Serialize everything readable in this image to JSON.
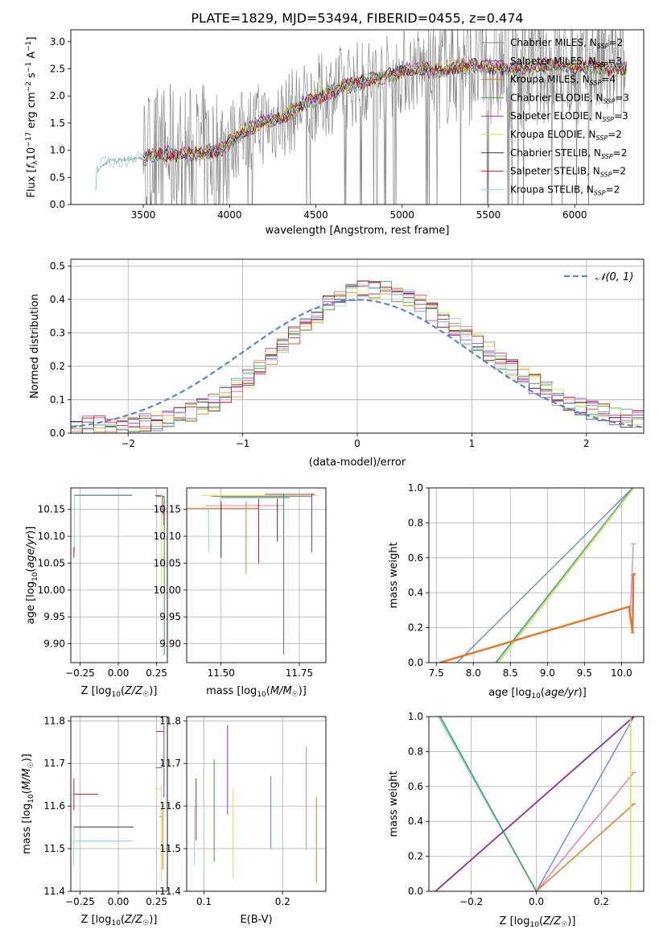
{
  "figure_title": "PLATE=1829, MJD=53494, FIBERID=0455, z=0.474",
  "colors": {
    "gray": "#808080",
    "purple": "#9b30b8",
    "yellow": "#dede4a",
    "black": "#333333",
    "red": "#c0201e",
    "cyan": "#8fd3d3",
    "blue": "#5a86cf",
    "orange": "#e07b2e",
    "green": "#3a9a4a",
    "pink": "#e37fb5",
    "dkpurple": "#8a2fa0"
  },
  "chart_data": [
    {
      "id": "spectrum",
      "type": "line",
      "xlabel": "wavelength [Angstrom, rest frame]",
      "ylabel": "Flux [f_λ10^-17 erg cm^-2 s^-1 A^-1]",
      "xlim": [
        3080,
        6400
      ],
      "ylim": [
        0,
        3.22
      ],
      "xticks": [
        3500,
        4000,
        4500,
        5000,
        5500,
        6000
      ],
      "yticks": [
        0.0,
        0.5,
        1.0,
        1.5,
        2.0,
        2.5,
        3.0
      ],
      "grid": false,
      "legend_position": "top-right",
      "legend": [
        "Chabrier MILES, N_SSP=2",
        "Salpeter MILES, N_SSP=3",
        "Kroupa MILES, N_SSP=4",
        "Chabrier ELODIE, N_SSP=3",
        "Salpeter ELODIE, N_SSP=3",
        "Kroupa ELODIE, N_SSP=2",
        "Chabrier STELIB, N_SSP=2",
        "Salpeter STELIB, N_SSP=2",
        "Kroupa STELIB, N_SSP=2"
      ],
      "model_colors": [
        "gray",
        "purple",
        "orange",
        "green",
        "purple",
        "yellow",
        "black",
        "red",
        "cyan"
      ],
      "continuum_points": [
        [
          3220,
          0.0
        ],
        [
          3230,
          0.6
        ],
        [
          3260,
          0.7
        ],
        [
          3300,
          0.8
        ],
        [
          3400,
          0.83
        ],
        [
          3500,
          0.85
        ],
        [
          3550,
          0.9
        ],
        [
          3650,
          0.95
        ],
        [
          3750,
          0.9
        ],
        [
          3850,
          0.95
        ],
        [
          3950,
          1.0
        ],
        [
          4000,
          1.15
        ],
        [
          4100,
          1.4
        ],
        [
          4200,
          1.5
        ],
        [
          4300,
          1.6
        ],
        [
          4400,
          1.8
        ],
        [
          4500,
          1.95
        ],
        [
          4600,
          2.1
        ],
        [
          4700,
          2.2
        ],
        [
          4800,
          2.3
        ],
        [
          4900,
          2.35
        ],
        [
          5000,
          2.45
        ],
        [
          5100,
          2.5
        ],
        [
          5200,
          2.45
        ],
        [
          5300,
          2.55
        ],
        [
          5400,
          2.55
        ],
        [
          5500,
          2.55
        ],
        [
          5600,
          2.5
        ],
        [
          5700,
          2.5
        ],
        [
          5800,
          2.55
        ],
        [
          5900,
          2.55
        ],
        [
          6000,
          2.55
        ],
        [
          6100,
          2.55
        ],
        [
          6200,
          2.5
        ]
      ]
    },
    {
      "id": "residuals",
      "type": "step",
      "xlabel": "(data-model)/error",
      "ylabel": "Normed distribution",
      "xlim": [
        -2.5,
        2.5
      ],
      "ylim": [
        0,
        0.52
      ],
      "xticks": [
        -2,
        -1,
        0,
        1,
        2
      ],
      "yticks": [
        0.0,
        0.1,
        0.2,
        0.3,
        0.4,
        0.5
      ],
      "grid": true,
      "legend_position": "top-right",
      "legend": [
        "𝒩(0, 1)"
      ],
      "gauss_color": "blue"
    },
    {
      "id": "age_vs_Z",
      "type": "errorbar",
      "xlabel": "Z [log10(Z/Z☉)]",
      "ylabel": "age  [log10(age/yr)]",
      "xlim": [
        -0.31,
        0.32
      ],
      "ylim": [
        9.865,
        10.19
      ],
      "xticks": [
        -0.25,
        0.0,
        0.25
      ],
      "xticklabels": [
        "−0.25",
        "0.00",
        "0.25"
      ],
      "yticks": [
        9.9,
        9.95,
        10.0,
        10.05,
        10.1,
        10.15
      ],
      "yticklabels": [
        "9.90",
        "9.95",
        "10.00",
        "10.05",
        "10.10",
        "10.15"
      ],
      "grid": true
    },
    {
      "id": "age_vs_mass",
      "type": "errorbar",
      "xlabel": "mass [log10(M/M☉)]",
      "ylabel": "",
      "xlim": [
        11.39,
        11.835
      ],
      "ylim": [
        9.865,
        10.19
      ],
      "xticks": [
        11.5,
        11.75
      ],
      "xticklabels": [
        "11.50",
        "11.75"
      ],
      "yticks": [
        9.9,
        9.95,
        10.0,
        10.05,
        10.1,
        10.15
      ],
      "yticklabels": [
        "9.90",
        "9.95",
        "10.00",
        "10.05",
        "10.10",
        "10.15"
      ],
      "grid": true
    },
    {
      "id": "weight_vs_age",
      "type": "line",
      "xlabel": "age  [log10(age/yr)]",
      "ylabel": "mass weight",
      "xlim": [
        7.4,
        10.3
      ],
      "ylim": [
        0,
        1.0
      ],
      "xticks": [
        7.5,
        8.0,
        8.5,
        9.0,
        9.5,
        10.0
      ],
      "xticklabels": [
        "7.5",
        "8.0",
        "8.5",
        "9.0",
        "9.5",
        "10.0"
      ],
      "yticks": [
        0.0,
        0.2,
        0.4,
        0.6,
        0.8,
        1.0
      ],
      "yticklabels": [
        "0.0",
        "0.2",
        "0.4",
        "0.6",
        "0.8",
        "1.0"
      ],
      "grid": true,
      "series": [
        {
          "color": "blue",
          "points": [
            [
              7.78,
              0
            ],
            [
              10.15,
              1.0
            ]
          ]
        },
        {
          "color": "green",
          "points": [
            [
              8.3,
              0
            ],
            [
              10.15,
              1.0
            ]
          ]
        },
        {
          "color": "cyan",
          "points": [
            [
              8.32,
              0
            ],
            [
              10.16,
              1.0
            ]
          ]
        },
        {
          "color": "yellow",
          "points": [
            [
              8.34,
              0
            ],
            [
              10.17,
              1.0
            ]
          ]
        },
        {
          "color": "orange",
          "width": 2.5,
          "points": [
            [
              7.55,
              0
            ],
            [
              10.1,
              0.32
            ],
            [
              10.15,
              0.17
            ],
            [
              10.16,
              0.5
            ],
            [
              10.17,
              0.51
            ]
          ]
        },
        {
          "color": "pink",
          "points": [
            [
              10.12,
              0.3
            ],
            [
              10.16,
              0.68
            ]
          ]
        }
      ]
    },
    {
      "id": "mass_vs_Z",
      "type": "errorbar",
      "xlabel": "Z [log10(Z/Z☉)]",
      "ylabel": "mass [log10(M/M☉)]",
      "xlim": [
        -0.31,
        0.32
      ],
      "ylim": [
        11.4,
        11.81
      ],
      "xticks": [
        -0.25,
        0.0,
        0.25
      ],
      "xticklabels": [
        "−0.25",
        "0.00",
        "0.25"
      ],
      "yticks": [
        11.4,
        11.5,
        11.6,
        11.7,
        11.8
      ],
      "yticklabels": [
        "11.4",
        "11.5",
        "11.6",
        "11.7",
        "11.8"
      ],
      "grid": true
    },
    {
      "id": "mass_vs_EBV",
      "type": "errorbar",
      "xlabel": "E(B-V)",
      "ylabel": "",
      "xlim": [
        0.078,
        0.255
      ],
      "ylim": [
        11.4,
        11.81
      ],
      "xticks": [
        0.1,
        0.2
      ],
      "xticklabels": [
        "0.1",
        "0.2"
      ],
      "yticks": [
        11.4,
        11.5,
        11.6,
        11.7,
        11.8
      ],
      "yticklabels": [
        "11.4",
        "11.5",
        "11.6",
        "11.7",
        "11.8"
      ],
      "grid": true
    },
    {
      "id": "weight_vs_Z",
      "type": "line",
      "xlabel": "Z [log10(Z/Z☉)]",
      "ylabel": "mass weight",
      "xlim": [
        -0.33,
        0.33
      ],
      "ylim": [
        0,
        1.0
      ],
      "xticks": [
        -0.2,
        0.0,
        0.2
      ],
      "xticklabels": [
        "−0.2",
        "0.0",
        "0.2"
      ],
      "yticks": [
        0.0,
        0.2,
        0.4,
        0.6,
        0.8,
        1.0
      ],
      "yticklabels": [
        "0.0",
        "0.2",
        "0.4",
        "0.6",
        "0.8",
        "1.0"
      ],
      "grid": true,
      "series": [
        {
          "color": "cyan",
          "width": 2,
          "points": [
            [
              -0.3,
              1.0
            ],
            [
              0.0,
              0.0
            ]
          ]
        },
        {
          "color": "green",
          "points": [
            [
              -0.295,
              1.0
            ],
            [
              0.0,
              0.0
            ]
          ]
        },
        {
          "color": "blue",
          "points": [
            [
              0.0,
              0.0
            ],
            [
              0.3,
              1.0
            ]
          ]
        },
        {
          "color": "dkpurple",
          "width": 1.8,
          "points": [
            [
              -0.31,
              0.0
            ],
            [
              0.3,
              1.0
            ]
          ]
        },
        {
          "color": "pink",
          "width": 1.5,
          "points": [
            [
              0.0,
              0.0
            ],
            [
              0.3,
              0.68
            ]
          ]
        },
        {
          "color": "orange",
          "width": 1.5,
          "points": [
            [
              0.0,
              0.0
            ],
            [
              0.3,
              0.5
            ]
          ]
        },
        {
          "color": "yellow",
          "width": 1.5,
          "points": [
            [
              0.29,
              0.0
            ],
            [
              0.29,
              1.0
            ]
          ]
        }
      ]
    }
  ]
}
